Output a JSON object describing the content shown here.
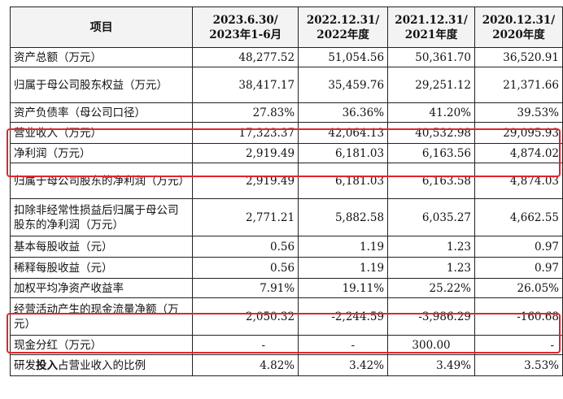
{
  "header": {
    "item": "项目",
    "periods": [
      {
        "line1": "2023.6.30/",
        "line2": "2023年1-6月"
      },
      {
        "line1": "2022.12.31/",
        "line2": "2022年度"
      },
      {
        "line1": "2021.12.31/",
        "line2": "2021年度"
      },
      {
        "line1": "2020.12.31/",
        "line2": "2020年度"
      }
    ]
  },
  "rows": [
    {
      "label": "资产总额（万元）",
      "values": [
        "48,277.52",
        "51,054.56",
        "50,361.70",
        "36,520.91"
      ]
    },
    {
      "label": "归属于母公司股东权益（万元）",
      "values": [
        "38,417.17",
        "35,459.76",
        "29,251.12",
        "21,371.66"
      ]
    },
    {
      "label": "资产负债率（母公司口径）",
      "values": [
        "27.83%",
        "36.36%",
        "41.20%",
        "39.53%"
      ]
    },
    {
      "label": "营业收入（万元）",
      "values": [
        "17,323.37",
        "42,064.13",
        "40,532.98",
        "29,095.93"
      ]
    },
    {
      "label": "净利润（万元）",
      "values": [
        "2,919.49",
        "6,181.03",
        "6,163.56",
        "4,874.02"
      ]
    },
    {
      "label": "归属于母公司股东的净利润（万元）",
      "values": [
        "2,919.49",
        "6,181.03",
        "6,163.58",
        "4,874.03"
      ]
    },
    {
      "label": "扣除非经常性损益后归属于母公司股东的净利润（万元）",
      "values": [
        "2,771.21",
        "5,882.58",
        "6,035.27",
        "4,662.55"
      ]
    },
    {
      "label": "基本每股收益（元）",
      "values": [
        "0.56",
        "1.19",
        "1.23",
        "0.97"
      ]
    },
    {
      "label": "稀释每股收益（元）",
      "values": [
        "0.56",
        "1.19",
        "1.23",
        "0.97"
      ]
    },
    {
      "label": "加权平均净资产收益率",
      "values": [
        "7.91%",
        "19.11%",
        "25.22%",
        "26.05%"
      ]
    },
    {
      "label": "经营活动产生的现金流量净额（万元）",
      "values": [
        "2,050.32",
        "-2,244.59",
        "-3,986.29",
        "-160.68"
      ]
    },
    {
      "label": "现金分红（万元）",
      "values": [
        "-",
        "-",
        "300.00",
        "-"
      ]
    },
    {
      "label_pre": "研发",
      "label_bold": "投入",
      "label_post": "占营业收入的比例",
      "values": [
        "4.82%",
        "3.42%",
        "3.49%",
        "3.53%"
      ]
    }
  ],
  "highlight_color": "#e0262b"
}
